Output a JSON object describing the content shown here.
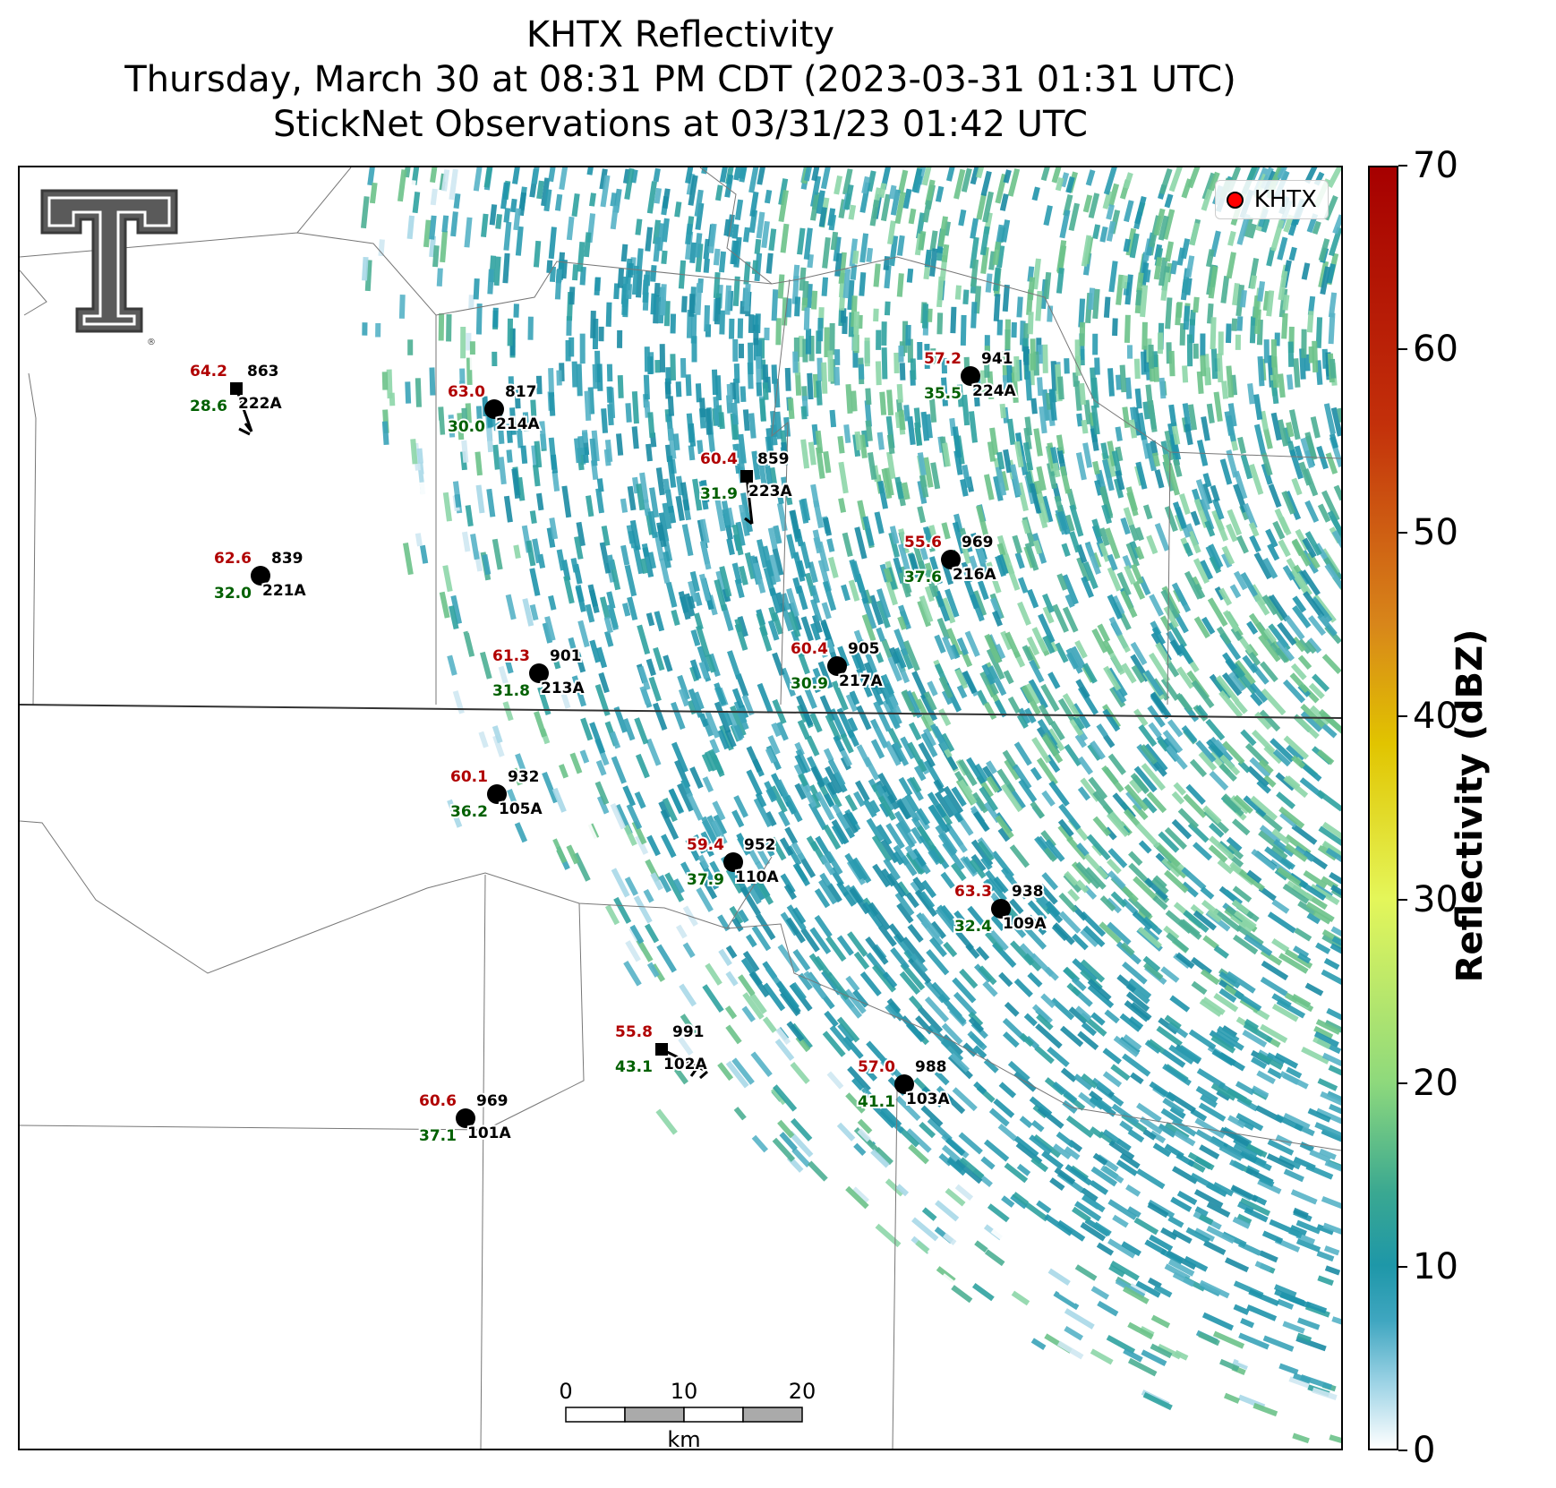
{
  "titles": {
    "line1": "KHTX Reflectivity",
    "line2": "Thursday, March 30 at 08:31 PM CDT (2023-03-31 01:31 UTC)",
    "line3": "StickNet Observations at 03/31/23 01:42 UTC"
  },
  "legend": {
    "label": "KHTX",
    "marker_color": "#ff0000"
  },
  "colorbar": {
    "title": "Reflectivity (dBZ)",
    "range": [
      0,
      70
    ],
    "ticks": [
      "0",
      "10",
      "20",
      "30",
      "40",
      "50",
      "60",
      "70"
    ]
  },
  "scale_bar": {
    "ticks": [
      "0",
      "10",
      "20"
    ],
    "unit": "km"
  },
  "logo": {
    "icon": "texas-tech-double-t-icon"
  },
  "colors": {
    "temp": "#b00000",
    "dewpoint": "#006000",
    "text": "#000000"
  },
  "stations": [
    {
      "id": "222A",
      "temp": "64.2",
      "dewpoint": "28.6",
      "pressure": "863",
      "marker": "square"
    },
    {
      "id": "214A",
      "temp": "63.0",
      "dewpoint": "30.0",
      "pressure": "817",
      "marker": "circle"
    },
    {
      "id": "224A",
      "temp": "57.2",
      "dewpoint": "35.5",
      "pressure": "941",
      "marker": "circle"
    },
    {
      "id": "223A",
      "temp": "60.4",
      "dewpoint": "31.9",
      "pressure": "859",
      "marker": "square"
    },
    {
      "id": "221A",
      "temp": "62.6",
      "dewpoint": "32.0",
      "pressure": "839",
      "marker": "circle"
    },
    {
      "id": "216A",
      "temp": "55.6",
      "dewpoint": "37.6",
      "pressure": "969",
      "marker": "circle"
    },
    {
      "id": "213A",
      "temp": "61.3",
      "dewpoint": "31.8",
      "pressure": "901",
      "marker": "circle"
    },
    {
      "id": "217A",
      "temp": "60.4",
      "dewpoint": "30.9",
      "pressure": "905",
      "marker": "circle"
    },
    {
      "id": "105A",
      "temp": "60.1",
      "dewpoint": "36.2",
      "pressure": "932",
      "marker": "circle"
    },
    {
      "id": "110A",
      "temp": "59.4",
      "dewpoint": "37.9",
      "pressure": "952",
      "marker": "circle"
    },
    {
      "id": "109A",
      "temp": "63.3",
      "dewpoint": "32.4",
      "pressure": "938",
      "marker": "circle"
    },
    {
      "id": "102A",
      "temp": "55.8",
      "dewpoint": "43.1",
      "pressure": "991",
      "marker": "square"
    },
    {
      "id": "103A",
      "temp": "57.0",
      "dewpoint": "41.1",
      "pressure": "988",
      "marker": "circle"
    },
    {
      "id": "101A",
      "temp": "60.6",
      "dewpoint": "37.1",
      "pressure": "969",
      "marker": "circle"
    }
  ]
}
